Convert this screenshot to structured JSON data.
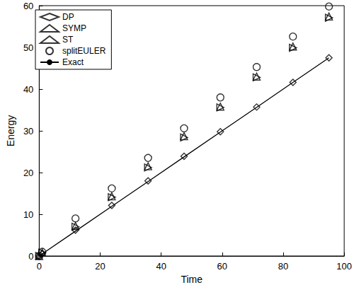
{
  "chart_data": {
    "type": "scatter",
    "x_label": "Time",
    "y_label": "Energy",
    "x": [
      0,
      1,
      11.9,
      23.8,
      35.7,
      47.5,
      59.4,
      71.3,
      83.2,
      95.0
    ],
    "series": [
      {
        "name": "DP",
        "type": "scatter",
        "marker": "diamond",
        "color": "#000000",
        "values": [
          0,
          0.5,
          6.2,
          12.1,
          18.0,
          23.9,
          29.8,
          35.7,
          41.6,
          47.5
        ]
      },
      {
        "name": "SYMP",
        "type": "scatter",
        "marker": "triangle-up",
        "color": "#000000",
        "values": [
          0,
          0.8,
          7.2,
          14.3,
          21.5,
          28.7,
          35.8,
          43.0,
          50.2,
          57.4
        ]
      },
      {
        "name": "ST",
        "type": "scatter",
        "marker": "triangle-right",
        "color": "#000000",
        "values": [
          0,
          0.8,
          7.0,
          14.1,
          21.2,
          28.4,
          35.6,
          42.8,
          49.9,
          57.1
        ]
      },
      {
        "name": "splitEULER",
        "type": "scatter",
        "marker": "circle",
        "color": "#000000",
        "values": [
          0,
          1.0,
          9.0,
          16.2,
          23.5,
          30.6,
          38.0,
          45.3,
          52.6,
          59.8
        ]
      },
      {
        "name": "Exact",
        "type": "line",
        "line_style": "solid",
        "color": "#000000",
        "values": [
          0,
          0.5,
          5.95,
          11.9,
          17.85,
          23.75,
          29.7,
          35.65,
          41.6,
          47.5
        ]
      }
    ],
    "xlim": [
      0,
      100
    ],
    "xticks": [
      0,
      20,
      40,
      60,
      80,
      100
    ],
    "ylim": [
      0,
      60
    ],
    "yticks": [
      0,
      10,
      20,
      30,
      40,
      50,
      60
    ],
    "grid": false,
    "legend": "upper left"
  }
}
